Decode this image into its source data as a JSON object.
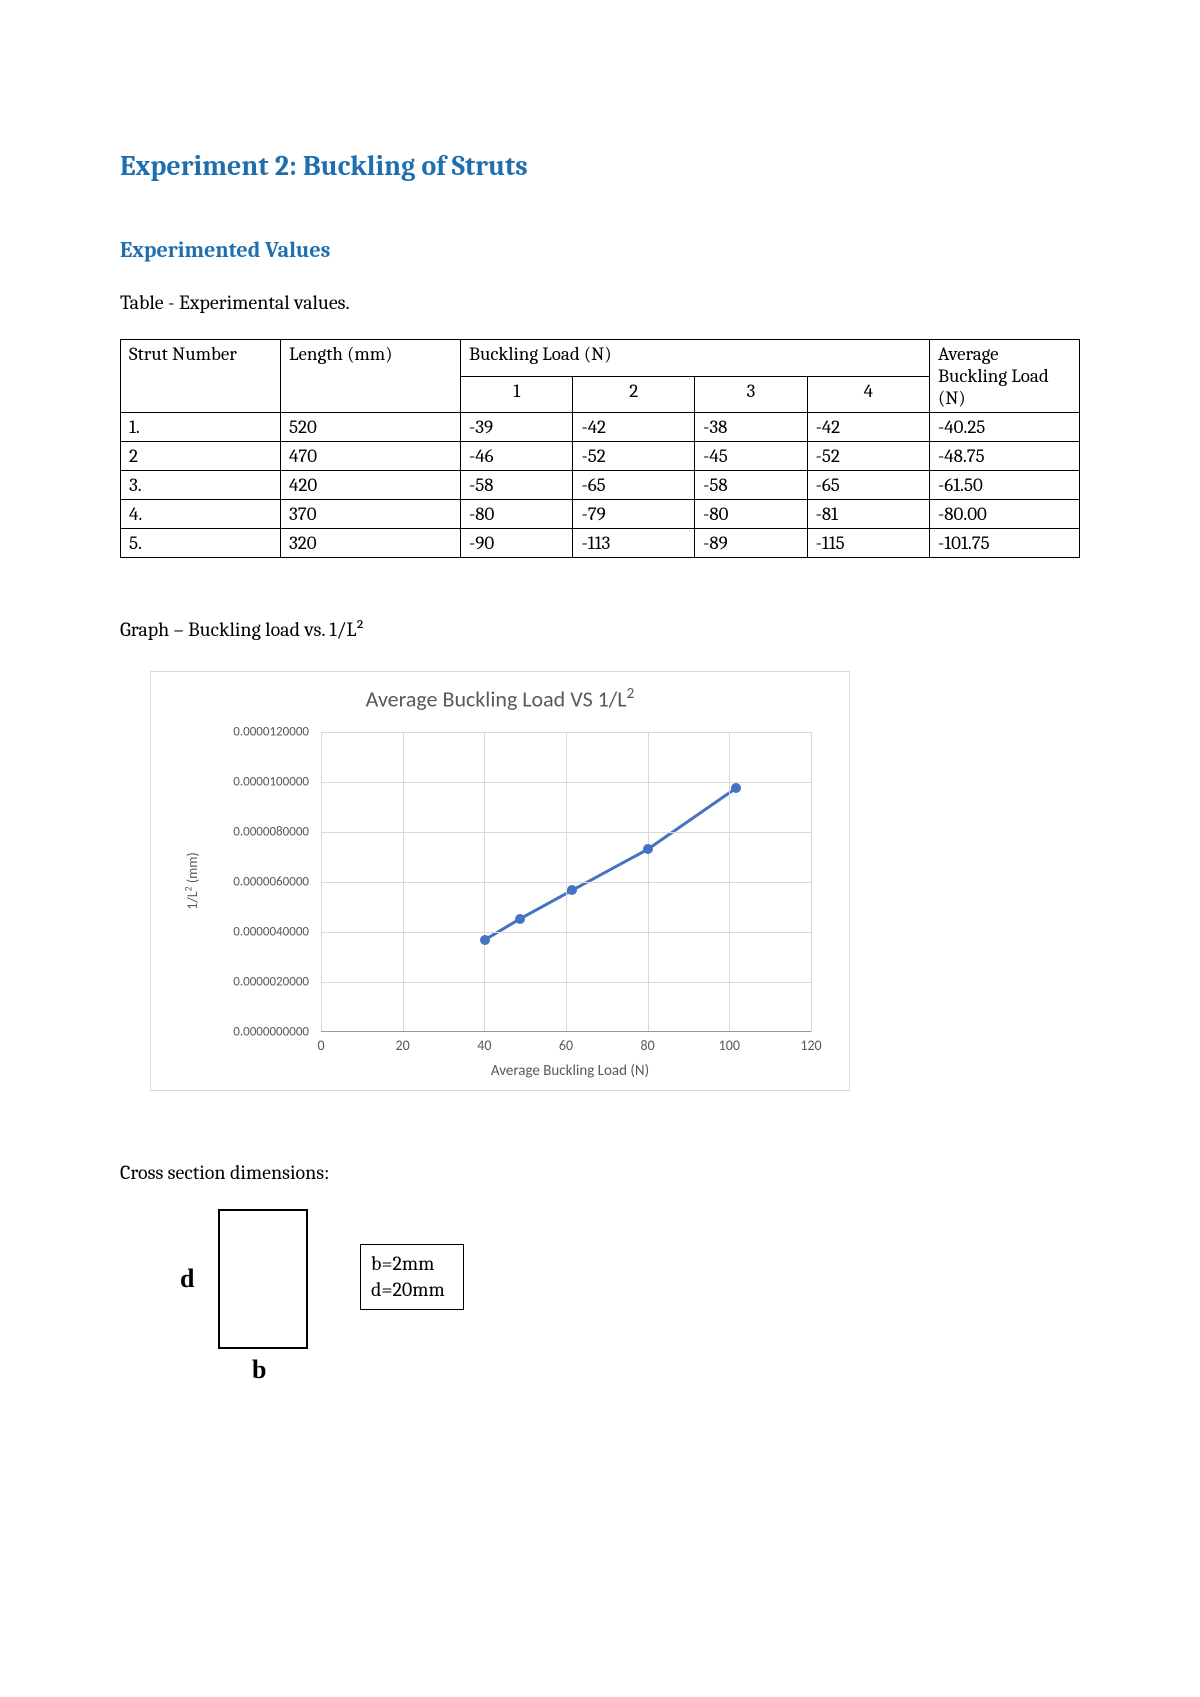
{
  "title": "Experiment 2: Buckling of Struts",
  "section": "Experimented Values",
  "table_caption": "Table - Experimental values.",
  "table": {
    "headers": {
      "strut": "Strut Number",
      "length": "Length (mm)",
      "load": "Buckling Load (N)",
      "avg": "Average Buckling Load (N)",
      "trials": [
        "1",
        "2",
        "3",
        "4"
      ]
    },
    "rows": [
      {
        "n": "1.",
        "len": "520",
        "t": [
          "-39",
          "-42",
          "-38",
          "-42"
        ],
        "avg": "-40.25"
      },
      {
        "n": "2",
        "len": "470",
        "t": [
          "-46",
          "-52",
          "-45",
          "-52"
        ],
        "avg": "-48.75"
      },
      {
        "n": "3.",
        "len": "420",
        "t": [
          "-58",
          "-65",
          "-58",
          "-65"
        ],
        "avg": "-61.50"
      },
      {
        "n": "4.",
        "len": "370",
        "t": [
          "-80",
          "-79",
          "-80",
          "-81"
        ],
        "avg": "-80.00"
      },
      {
        "n": "5.",
        "len": "320",
        "t": [
          "-90",
          "-113",
          "-89",
          "-115"
        ],
        "avg": "-101.75"
      }
    ]
  },
  "graph_caption": "Graph – Buckling load vs. 1/L²",
  "chart": {
    "type": "line",
    "title": "Average Buckling Load VS 1/L",
    "title_sup": "2",
    "xlabel": "Average Buckling Load (N)",
    "ylabel": "1/L² (mm)",
    "xlim": [
      0,
      120
    ],
    "ylim": [
      0,
      1.2e-05
    ],
    "xticks": [
      0,
      20,
      40,
      60,
      80,
      100,
      120
    ],
    "yticks": [
      "0.0000000000",
      "0.0000020000",
      "0.0000040000",
      "0.0000060000",
      "0.0000080000",
      "0.0000100000",
      "0.0000120000"
    ],
    "points": [
      {
        "x": 40.25,
        "y": 3.6982e-06
      },
      {
        "x": 48.75,
        "y": 4.5269e-06
      },
      {
        "x": 61.5,
        "y": 5.6689e-06
      },
      {
        "x": 80.0,
        "y": 7.3046e-06
      },
      {
        "x": 101.75,
        "y": 9.7656e-06
      }
    ],
    "line_color": "#4472c4",
    "marker_color": "#4472c4",
    "grid_color": "#d9d9d9",
    "background_color": "#ffffff",
    "line_width": 3,
    "marker_size": 10
  },
  "cross_section_label": "Cross section dimensions:",
  "cross_section": {
    "d_label": "d",
    "b_label": "b",
    "dims": {
      "b": "b=2mm",
      "d": "d=20mm"
    }
  }
}
